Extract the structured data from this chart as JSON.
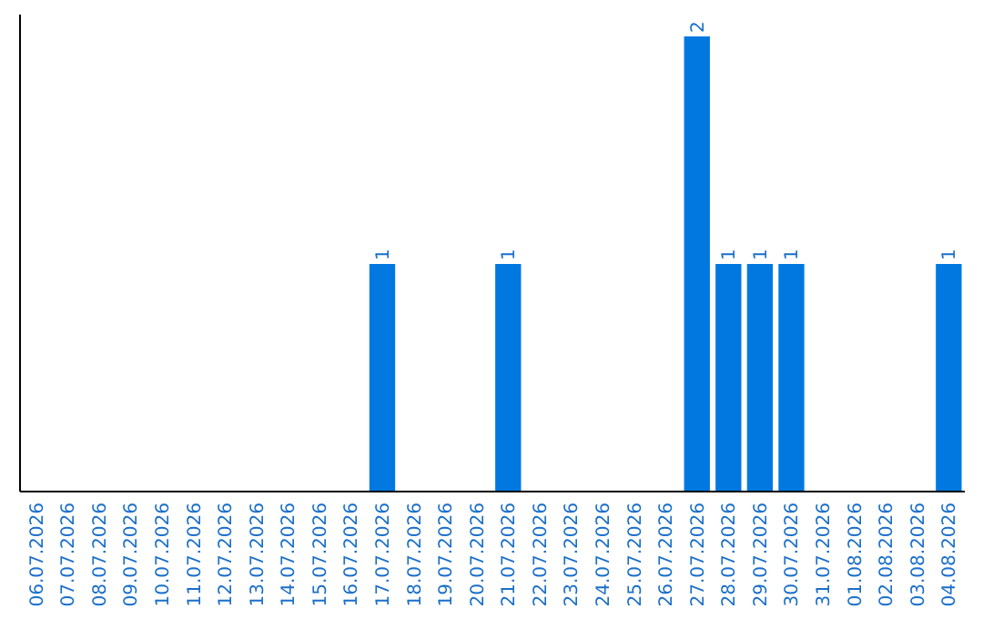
{
  "chart_data": {
    "type": "bar",
    "categories": [
      "06.07.2026",
      "07.07.2026",
      "08.07.2026",
      "09.07.2026",
      "10.07.2026",
      "11.07.2026",
      "12.07.2026",
      "13.07.2026",
      "14.07.2026",
      "15.07.2026",
      "16.07.2026",
      "17.07.2026",
      "18.07.2026",
      "19.07.2026",
      "20.07.2026",
      "21.07.2026",
      "22.07.2026",
      "23.07.2026",
      "24.07.2026",
      "25.07.2026",
      "26.07.2026",
      "27.07.2026",
      "28.07.2026",
      "29.07.2026",
      "30.07.2026",
      "31.07.2026",
      "01.08.2026",
      "02.08.2026",
      "03.08.2026",
      "04.08.2026"
    ],
    "values": [
      0,
      0,
      0,
      0,
      0,
      0,
      0,
      0,
      0,
      0,
      0,
      1,
      0,
      0,
      0,
      1,
      0,
      0,
      0,
      0,
      0,
      2,
      1,
      1,
      1,
      0,
      0,
      0,
      0,
      1
    ],
    "value_labels": [
      null,
      null,
      null,
      null,
      null,
      null,
      null,
      null,
      null,
      null,
      null,
      "1",
      null,
      null,
      null,
      "1",
      null,
      null,
      null,
      null,
      null,
      "2",
      "1",
      "1",
      "1",
      null,
      null,
      null,
      null,
      "1"
    ],
    "color": "#0078e0"
  }
}
